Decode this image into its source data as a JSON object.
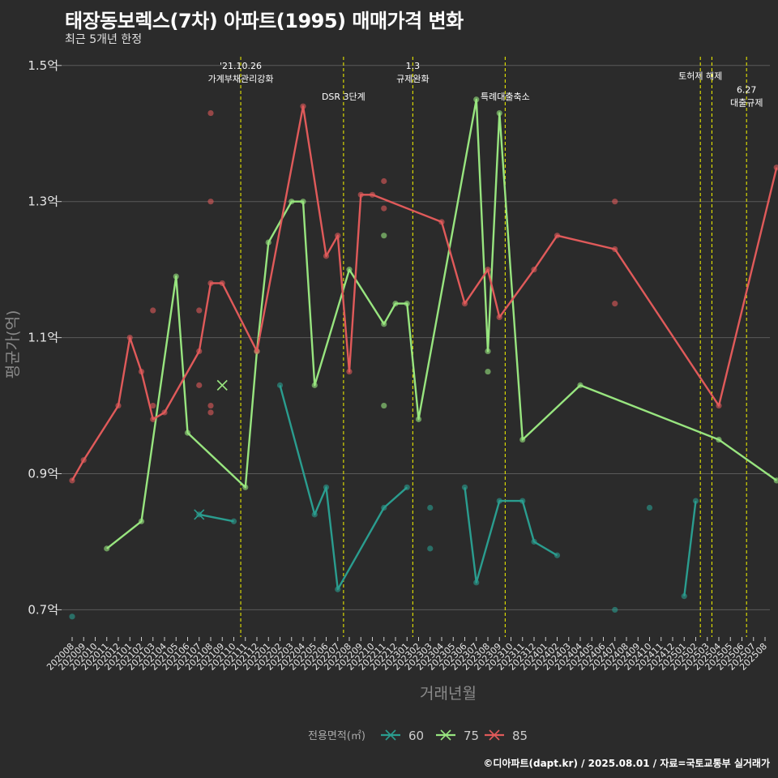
{
  "title": "태장동보렉스(7차) 아파트(1995) 매매가격 변화",
  "subtitle": "최근 5개년 한정",
  "caption": "©디아파트(dapt.kr) / 2025.08.01 / 자료=국토교통부 실거래가",
  "chart_data": {
    "type": "line",
    "xlabel": "거래년월",
    "ylabel": "평균가(억)",
    "ylim": [
      0.66,
      1.52
    ],
    "yticks": [
      0.7,
      0.9,
      1.1,
      1.3,
      1.5
    ],
    "ytick_labels": [
      "0.7억",
      "0.9억",
      "1.1억",
      "1.3억",
      "1.5억"
    ],
    "categories": [
      "202008",
      "202009",
      "202010",
      "202011",
      "202012",
      "202101",
      "202102",
      "202103",
      "202104",
      "202105",
      "202106",
      "202107",
      "202108",
      "202109",
      "202110",
      "202111",
      "202112",
      "202201",
      "202202",
      "202203",
      "202204",
      "202205",
      "202206",
      "202207",
      "202208",
      "202209",
      "202210",
      "202211",
      "202212",
      "202301",
      "202302",
      "202303",
      "202304",
      "202305",
      "202306",
      "202307",
      "202308",
      "202309",
      "202310",
      "202311",
      "202312",
      "202401",
      "202402",
      "202403",
      "202404",
      "202405",
      "202406",
      "202407",
      "202408",
      "202409",
      "202410",
      "202411",
      "202412",
      "202501",
      "202502",
      "202503",
      "202504",
      "202505",
      "202506",
      "202507",
      "202508"
    ],
    "grid": true,
    "legend": {
      "title": "전용면적(㎡)",
      "position": "bottom"
    },
    "series": [
      {
        "name": "60",
        "color": "#2a9d8f",
        "line": [
          [
            "202107",
            0.84
          ],
          [
            "202110",
            0.83
          ],
          null,
          [
            "202202",
            1.03
          ],
          [
            "202205",
            0.84
          ],
          [
            "202206",
            0.88
          ],
          [
            "202207",
            0.73
          ],
          [
            "202211",
            0.85
          ],
          [
            "202301",
            0.88
          ],
          null,
          [
            "202306",
            0.88
          ],
          [
            "202307",
            0.74
          ],
          [
            "202309",
            0.86
          ],
          [
            "202311",
            0.86
          ],
          [
            "202312",
            0.8
          ],
          [
            "202402",
            0.78
          ],
          null,
          [
            "202501",
            0.72
          ],
          [
            "202502",
            0.86
          ]
        ],
        "points": [
          [
            "202008",
            0.69
          ],
          [
            "202107",
            0.84
          ],
          [
            "202110",
            0.83
          ],
          [
            "202202",
            1.03
          ],
          [
            "202205",
            0.84
          ],
          [
            "202206",
            0.88
          ],
          [
            "202207",
            0.73
          ],
          [
            "202211",
            0.85
          ],
          [
            "202301",
            0.88
          ],
          [
            "202303",
            0.85
          ],
          [
            "202303",
            0.79
          ],
          [
            "202306",
            0.88
          ],
          [
            "202307",
            0.74
          ],
          [
            "202309",
            0.86
          ],
          [
            "202311",
            0.86
          ],
          [
            "202312",
            0.8
          ],
          [
            "202402",
            0.78
          ],
          [
            "202407",
            0.7
          ],
          [
            "202410",
            0.85
          ],
          [
            "202501",
            0.72
          ],
          [
            "202502",
            0.86
          ]
        ]
      },
      {
        "name": "75",
        "color": "#98e57f",
        "line": [
          [
            "202011",
            0.79
          ],
          [
            "202102",
            0.83
          ],
          [
            "202105",
            1.19
          ],
          [
            "202106",
            0.96
          ],
          [
            "202111",
            0.88
          ],
          [
            "202112",
            1.08
          ],
          [
            "202201",
            1.24
          ],
          [
            "202203",
            1.3
          ],
          [
            "202204",
            1.3
          ],
          [
            "202205",
            1.03
          ],
          [
            "202208",
            1.2
          ],
          [
            "202211",
            1.12
          ],
          [
            "202212",
            1.15
          ],
          [
            "202301",
            1.15
          ],
          [
            "202302",
            0.98
          ],
          [
            "202307",
            1.45
          ],
          [
            "202308",
            1.08
          ],
          [
            "202309",
            1.43
          ],
          [
            "202311",
            0.95
          ],
          [
            "202404",
            1.03
          ],
          [
            "202504",
            0.95
          ],
          [
            "202509",
            0.89
          ]
        ],
        "points": [
          [
            "202011",
            0.79
          ],
          [
            "202102",
            0.83
          ],
          [
            "202105",
            1.19
          ],
          [
            "202106",
            0.96
          ],
          [
            "202111",
            0.88
          ],
          [
            "202112",
            1.08
          ],
          [
            "202201",
            1.24
          ],
          [
            "202203",
            1.3
          ],
          [
            "202204",
            1.3
          ],
          [
            "202205",
            1.03
          ],
          [
            "202208",
            1.2
          ],
          [
            "202211",
            1.12
          ],
          [
            "202212",
            1.15
          ],
          [
            "202301",
            1.15
          ],
          [
            "202302",
            0.98
          ],
          [
            "202307",
            1.45
          ],
          [
            "202308",
            1.08
          ],
          [
            "202309",
            1.43
          ],
          [
            "202311",
            0.95
          ],
          [
            "202404",
            1.03
          ],
          [
            "202504",
            0.95
          ],
          [
            "202509",
            0.89
          ],
          [
            "202211",
            1.25
          ],
          [
            "202211",
            1.0
          ],
          [
            "202308",
            1.05
          ]
        ]
      },
      {
        "name": "85",
        "color": "#e05a5a",
        "line": [
          [
            "202008",
            0.89
          ],
          [
            "202009",
            0.92
          ],
          [
            "202012",
            1.0
          ],
          [
            "202101",
            1.1
          ],
          [
            "202102",
            1.05
          ],
          [
            "202103",
            0.98
          ],
          [
            "202104",
            0.99
          ],
          [
            "202107",
            1.08
          ],
          [
            "202108",
            1.18
          ],
          [
            "202109",
            1.18
          ],
          [
            "202112",
            1.08
          ],
          [
            "202204",
            1.44
          ],
          [
            "202206",
            1.22
          ],
          [
            "202207",
            1.25
          ],
          [
            "202208",
            1.05
          ],
          [
            "202209",
            1.31
          ],
          [
            "202210",
            1.31
          ],
          [
            "202304",
            1.27
          ],
          [
            "202306",
            1.15
          ],
          [
            "202308",
            1.2
          ],
          [
            "202309",
            1.13
          ],
          [
            "202312",
            1.2
          ],
          [
            "202402",
            1.25
          ],
          [
            "202407",
            1.23
          ],
          [
            "202504",
            1.0
          ],
          [
            "202509",
            1.35
          ]
        ],
        "points": [
          [
            "202008",
            0.89
          ],
          [
            "202009",
            0.92
          ],
          [
            "202012",
            1.0
          ],
          [
            "202101",
            1.1
          ],
          [
            "202102",
            1.05
          ],
          [
            "202103",
            0.98
          ],
          [
            "202104",
            0.99
          ],
          [
            "202107",
            1.08
          ],
          [
            "202108",
            1.18
          ],
          [
            "202109",
            1.18
          ],
          [
            "202112",
            1.08
          ],
          [
            "202204",
            1.44
          ],
          [
            "202206",
            1.22
          ],
          [
            "202207",
            1.25
          ],
          [
            "202208",
            1.05
          ],
          [
            "202209",
            1.31
          ],
          [
            "202210",
            1.31
          ],
          [
            "202304",
            1.27
          ],
          [
            "202306",
            1.15
          ],
          [
            "202308",
            1.2
          ],
          [
            "202309",
            1.13
          ],
          [
            "202312",
            1.2
          ],
          [
            "202402",
            1.25
          ],
          [
            "202407",
            1.23
          ],
          [
            "202504",
            1.0
          ],
          [
            "202509",
            1.35
          ],
          [
            "202108",
            1.43
          ],
          [
            "202108",
            1.3
          ],
          [
            "202108",
            1.0
          ],
          [
            "202108",
            0.99
          ],
          [
            "202107",
            1.14
          ],
          [
            "202107",
            1.03
          ],
          [
            "202103",
            1.14
          ],
          [
            "202103",
            1.0
          ],
          [
            "202211",
            1.33
          ],
          [
            "202211",
            1.29
          ],
          [
            "202407",
            1.3
          ],
          [
            "202407",
            1.15
          ]
        ]
      }
    ],
    "crosses": [
      {
        "series": "60",
        "x": "202107",
        "y": 0.84
      },
      {
        "series": "75",
        "x": "202109",
        "y": 1.03
      }
    ],
    "vlines": [
      {
        "x": 14.6,
        "lines": [
          "'21.10.26",
          "가계부채관리강화"
        ],
        "label_y": 1.495
      },
      {
        "x": 23.5,
        "lines": [
          "DSR 3단계"
        ],
        "label_y": 1.45
      },
      {
        "x": 29.5,
        "lines": [
          "1.3",
          "규제완화"
        ],
        "label_y": 1.495
      },
      {
        "x": 37.5,
        "lines": [
          "특례대출축소"
        ],
        "label_y": 1.45
      },
      {
        "x": 54.4,
        "lines": [
          "토허제 해제"
        ],
        "label_y": 1.48
      },
      {
        "x": 55.4,
        "lines": [],
        "label_y": 1.48
      },
      {
        "x": 58.4,
        "lines": [
          "6.27",
          "대출규제"
        ],
        "label_y": 1.46
      }
    ],
    "vline_color": "#e6e600"
  }
}
